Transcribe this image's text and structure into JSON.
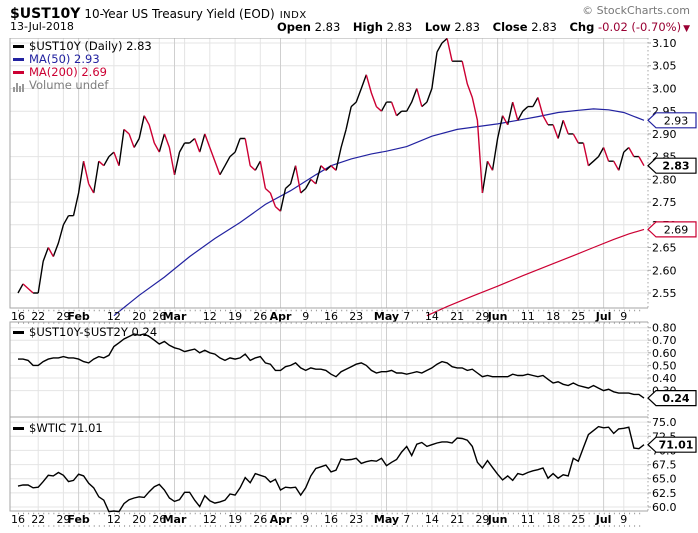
{
  "header": {
    "symbol": "$UST10Y",
    "title": "10-Year US Treasury Yield (EOD)",
    "exchange": "INDX",
    "copyright": "© StockCharts.com",
    "date": "13-Jul-2018",
    "quote": {
      "open_label": "Open",
      "open": "2.83",
      "high_label": "High",
      "high": "2.83",
      "low_label": "Low",
      "low": "2.83",
      "close_label": "Close",
      "close": "2.83",
      "chg_label": "Chg",
      "chg": "-0.02 (-0.70%)",
      "chg_dir": "▼"
    }
  },
  "colors": {
    "up": "#000000",
    "down": "#cc0033",
    "ma50": "#2222a0",
    "ma200": "#cc0033",
    "negative": "#990033",
    "muted": "#7d7d7d",
    "grid": "#e4e4e4",
    "grid_month": "#cfcfcf",
    "panel_border": "#a6a6a6"
  },
  "x_axis": {
    "ticks": [
      {
        "t": "16",
        "i": 0,
        "m": false
      },
      {
        "t": "22",
        "i": 4,
        "m": false
      },
      {
        "t": "29",
        "i": 9,
        "m": false
      },
      {
        "t": "Feb",
        "i": 12,
        "m": true
      },
      {
        "t": "12",
        "i": 19,
        "m": false
      },
      {
        "t": "20",
        "i": 24,
        "m": false
      },
      {
        "t": "26",
        "i": 28,
        "m": false
      },
      {
        "t": "Mar",
        "i": 31,
        "m": true
      },
      {
        "t": "12",
        "i": 38,
        "m": false
      },
      {
        "t": "19",
        "i": 43,
        "m": false
      },
      {
        "t": "26",
        "i": 48,
        "m": false
      },
      {
        "t": "Apr",
        "i": 52,
        "m": true
      },
      {
        "t": "9",
        "i": 57,
        "m": false
      },
      {
        "t": "16",
        "i": 62,
        "m": false
      },
      {
        "t": "23",
        "i": 67,
        "m": false
      },
      {
        "t": "May",
        "i": 73,
        "m": true
      },
      {
        "t": "7",
        "i": 77,
        "m": false
      },
      {
        "t": "14",
        "i": 82,
        "m": false
      },
      {
        "t": "21",
        "i": 87,
        "m": false
      },
      {
        "t": "29",
        "i": 92,
        "m": false
      },
      {
        "t": "Jun",
        "i": 95,
        "m": true
      },
      {
        "t": "11",
        "i": 101,
        "m": false
      },
      {
        "t": "18",
        "i": 106,
        "m": false
      },
      {
        "t": "25",
        "i": 111,
        "m": false
      },
      {
        "t": "Jul",
        "i": 116,
        "m": true
      },
      {
        "t": "9",
        "i": 120,
        "m": false
      }
    ],
    "minor_grid": [
      4,
      9,
      14,
      19,
      24,
      28,
      33,
      38,
      43,
      48,
      57,
      62,
      67,
      72,
      77,
      82,
      87,
      92,
      96,
      101,
      106,
      111,
      120
    ],
    "month_grid": [
      12,
      31,
      52,
      73,
      95,
      116
    ],
    "n_points": 125,
    "range_label": "16-Jan-2018 to 13-Jul-2018 (daily)"
  },
  "chart_data": [
    {
      "type": "line",
      "title": "$UST10Y (Daily)",
      "ylim": [
        2.52,
        3.11
      ],
      "yticks": [
        "2.55",
        "2.60",
        "2.65",
        "2.70",
        "2.75",
        "2.80",
        "2.85",
        "2.90",
        "2.95",
        "3.00",
        "3.05",
        "3.10"
      ],
      "legend": [
        {
          "label": "$UST10Y (Daily) 2.83",
          "color": "#000000"
        },
        {
          "label": "MA(50) 2.93",
          "color": "#2222a0"
        },
        {
          "label": "MA(200) 2.69",
          "color": "#cc0033"
        },
        {
          "label": "Volume undef",
          "color": "#7d7d7d",
          "icon": "volume-bars-icon"
        }
      ],
      "series": [
        {
          "name": "MA50",
          "color": "#2222a0",
          "points": [
            [
              19,
              2.5
            ],
            [
              24,
              2.545
            ],
            [
              29,
              2.585
            ],
            [
              34,
              2.63
            ],
            [
              39,
              2.67
            ],
            [
              44,
              2.705
            ],
            [
              49,
              2.745
            ],
            [
              54,
              2.775
            ],
            [
              59,
              2.81
            ],
            [
              62,
              2.83
            ],
            [
              66,
              2.845
            ],
            [
              70,
              2.856
            ],
            [
              73,
              2.862
            ],
            [
              77,
              2.872
            ],
            [
              82,
              2.895
            ],
            [
              87,
              2.91
            ],
            [
              91,
              2.916
            ],
            [
              95,
              2.922
            ],
            [
              99,
              2.93
            ],
            [
              103,
              2.938
            ],
            [
              107,
              2.947
            ],
            [
              111,
              2.952
            ],
            [
              114,
              2.955
            ],
            [
              117,
              2.953
            ],
            [
              120,
              2.947
            ],
            [
              124,
              2.93
            ]
          ]
        },
        {
          "name": "MA200",
          "color": "#cc0033",
          "points": [
            [
              81,
              2.5
            ],
            [
              85,
              2.52
            ],
            [
              90,
              2.543
            ],
            [
              95,
              2.565
            ],
            [
              100,
              2.588
            ],
            [
              105,
              2.61
            ],
            [
              110,
              2.632
            ],
            [
              114,
              2.65
            ],
            [
              118,
              2.668
            ],
            [
              121,
              2.68
            ],
            [
              124,
              2.69
            ]
          ]
        },
        {
          "name": "UST10Y",
          "type": "dual_line",
          "up_color": "#000000",
          "down_color": "#cc0033",
          "values": [
            2.55,
            2.57,
            2.56,
            2.55,
            2.55,
            2.62,
            2.65,
            2.63,
            2.66,
            2.7,
            2.72,
            2.72,
            2.77,
            2.84,
            2.79,
            2.77,
            2.84,
            2.83,
            2.85,
            2.86,
            2.83,
            2.91,
            2.9,
            2.87,
            2.89,
            2.94,
            2.92,
            2.88,
            2.86,
            2.9,
            2.87,
            2.81,
            2.86,
            2.88,
            2.88,
            2.89,
            2.86,
            2.9,
            2.87,
            2.84,
            2.81,
            2.83,
            2.85,
            2.86,
            2.89,
            2.89,
            2.83,
            2.82,
            2.84,
            2.78,
            2.77,
            2.74,
            2.73,
            2.78,
            2.79,
            2.83,
            2.77,
            2.78,
            2.8,
            2.79,
            2.83,
            2.82,
            2.83,
            2.82,
            2.87,
            2.91,
            2.96,
            2.97,
            3.0,
            3.03,
            2.99,
            2.96,
            2.95,
            2.97,
            2.97,
            2.94,
            2.95,
            2.95,
            2.97,
            3.0,
            2.96,
            2.97,
            3.0,
            3.08,
            3.1,
            3.11,
            3.06,
            3.06,
            3.06,
            3.01,
            2.98,
            2.93,
            2.77,
            2.84,
            2.82,
            2.89,
            2.94,
            2.92,
            2.97,
            2.93,
            2.95,
            2.96,
            2.96,
            2.98,
            2.94,
            2.92,
            2.92,
            2.89,
            2.93,
            2.9,
            2.9,
            2.88,
            2.88,
            2.83,
            2.84,
            2.85,
            2.87,
            2.84,
            2.84,
            2.82,
            2.86,
            2.87,
            2.85,
            2.85,
            2.83
          ]
        }
      ],
      "badges": [
        {
          "text": "2.93",
          "value": 2.93,
          "color": "#2222a0",
          "bold": false
        },
        {
          "text": "2.83",
          "value": 2.83,
          "color": "#000000",
          "bold": true
        },
        {
          "text": "2.69",
          "value": 2.69,
          "color": "#cc0033",
          "bold": false
        }
      ]
    },
    {
      "type": "line",
      "title": "$UST10Y-$UST2Y",
      "ylim": [
        0.09,
        0.845
      ],
      "yticks": [
        "0.30",
        "0.40",
        "0.50",
        "0.60",
        "0.70",
        "0.80"
      ],
      "legend": [
        {
          "label": "$UST10Y-$UST2Y 0.24",
          "color": "#000000"
        }
      ],
      "series": [
        {
          "name": "spread",
          "color": "#000000",
          "values": [
            0.55,
            0.55,
            0.54,
            0.5,
            0.5,
            0.53,
            0.55,
            0.56,
            0.56,
            0.57,
            0.56,
            0.56,
            0.55,
            0.53,
            0.52,
            0.55,
            0.57,
            0.56,
            0.58,
            0.65,
            0.68,
            0.71,
            0.73,
            0.75,
            0.74,
            0.75,
            0.73,
            0.7,
            0.67,
            0.69,
            0.66,
            0.64,
            0.63,
            0.61,
            0.62,
            0.63,
            0.6,
            0.62,
            0.6,
            0.59,
            0.56,
            0.54,
            0.56,
            0.55,
            0.56,
            0.59,
            0.54,
            0.56,
            0.57,
            0.52,
            0.51,
            0.46,
            0.46,
            0.49,
            0.5,
            0.52,
            0.48,
            0.46,
            0.48,
            0.47,
            0.47,
            0.46,
            0.43,
            0.41,
            0.45,
            0.47,
            0.49,
            0.51,
            0.52,
            0.5,
            0.46,
            0.44,
            0.45,
            0.45,
            0.46,
            0.44,
            0.44,
            0.43,
            0.44,
            0.45,
            0.44,
            0.46,
            0.48,
            0.51,
            0.53,
            0.52,
            0.49,
            0.48,
            0.48,
            0.46,
            0.47,
            0.44,
            0.41,
            0.42,
            0.41,
            0.41,
            0.41,
            0.41,
            0.43,
            0.42,
            0.42,
            0.43,
            0.42,
            0.41,
            0.42,
            0.39,
            0.36,
            0.37,
            0.35,
            0.34,
            0.36,
            0.34,
            0.33,
            0.32,
            0.34,
            0.32,
            0.3,
            0.31,
            0.29,
            0.28,
            0.28,
            0.28,
            0.27,
            0.27,
            0.24
          ]
        }
      ],
      "badges": [
        {
          "text": "0.24",
          "value": 0.24,
          "color": "#000000",
          "bold": true
        }
      ]
    },
    {
      "type": "line",
      "title": "$WTIC",
      "ylim": [
        59.3,
        75.9
      ],
      "yticks": [
        "60.0",
        "62.5",
        "65.0",
        "67.5",
        "70.0",
        "72.5",
        "75.0"
      ],
      "legend": [
        {
          "label": "$WTIC 71.01",
          "color": "#000000"
        }
      ],
      "series": [
        {
          "name": "WTIC",
          "color": "#000000",
          "values": [
            63.7,
            63.9,
            63.9,
            63.4,
            63.5,
            64.5,
            65.6,
            65.5,
            66.1,
            65.6,
            64.5,
            64.7,
            65.8,
            65.5,
            64.2,
            63.4,
            61.8,
            61.2,
            59.2,
            59.3,
            59.2,
            60.6,
            61.3,
            61.6,
            61.8,
            61.7,
            62.7,
            63.6,
            64.0,
            63.0,
            61.6,
            61.0,
            61.3,
            62.6,
            62.6,
            61.2,
            60.1,
            62.0,
            61.1,
            60.7,
            60.9,
            61.2,
            62.3,
            62.1,
            63.4,
            65.2,
            64.3,
            65.9,
            65.6,
            65.3,
            64.4,
            64.9,
            63.0,
            63.5,
            63.4,
            63.5,
            62.1,
            63.4,
            65.5,
            66.8,
            67.1,
            67.4,
            66.2,
            66.5,
            68.5,
            68.3,
            68.4,
            68.6,
            67.7,
            68.0,
            68.2,
            68.1,
            68.6,
            67.3,
            67.9,
            68.4,
            69.7,
            70.7,
            69.1,
            71.1,
            71.4,
            70.7,
            71.0,
            71.3,
            71.5,
            71.5,
            71.3,
            72.2,
            72.1,
            71.8,
            70.7,
            67.9,
            66.9,
            68.2,
            67.0,
            65.8,
            64.8,
            65.5,
            64.7,
            65.9,
            65.7,
            66.1,
            66.4,
            66.6,
            66.9,
            65.1,
            65.9,
            65.1,
            65.7,
            65.5,
            68.6,
            68.1,
            70.5,
            72.8,
            73.5,
            74.2,
            74.0,
            74.1,
            73.0,
            73.8,
            73.9,
            74.1,
            70.4,
            70.3,
            71.0
          ]
        }
      ],
      "badges": [
        {
          "text": "71.01",
          "value": 71.01,
          "color": "#000000",
          "bold": true
        }
      ]
    }
  ]
}
